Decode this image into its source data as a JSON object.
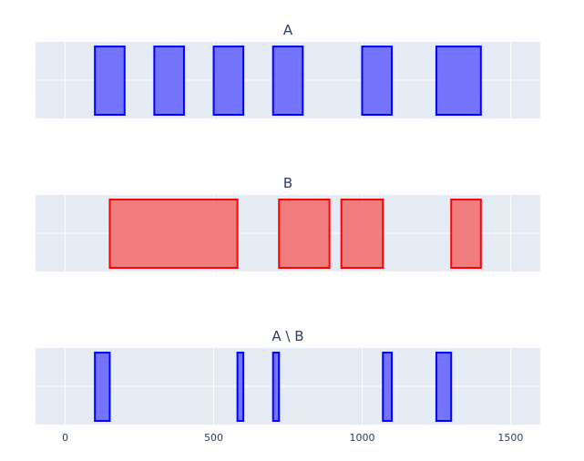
{
  "chart_data": {
    "type": "interval",
    "xlim": [
      -100,
      1600
    ],
    "x_ticks": [
      0,
      500,
      1000,
      1500
    ],
    "x_tick_labels": [
      "0",
      "500",
      "1000",
      "1500"
    ],
    "grid": true,
    "panels": [
      {
        "title": "A",
        "fill": "#6666ff",
        "stroke": "#0000ff",
        "intervals": [
          [
            100,
            200
          ],
          [
            300,
            400
          ],
          [
            500,
            600
          ],
          [
            700,
            800
          ],
          [
            1000,
            1100
          ],
          [
            1250,
            1400
          ]
        ]
      },
      {
        "title": "B",
        "fill": "#f27070",
        "stroke": "#ff0000",
        "intervals": [
          [
            150,
            580
          ],
          [
            720,
            890
          ],
          [
            930,
            1070
          ],
          [
            1300,
            1400
          ]
        ]
      },
      {
        "title": "A \\ B",
        "fill": "#6666ff",
        "stroke": "#0000ff",
        "intervals": [
          [
            100,
            150
          ],
          [
            580,
            600
          ],
          [
            700,
            720
          ],
          [
            1070,
            1100
          ],
          [
            1250,
            1300
          ]
        ]
      }
    ]
  }
}
